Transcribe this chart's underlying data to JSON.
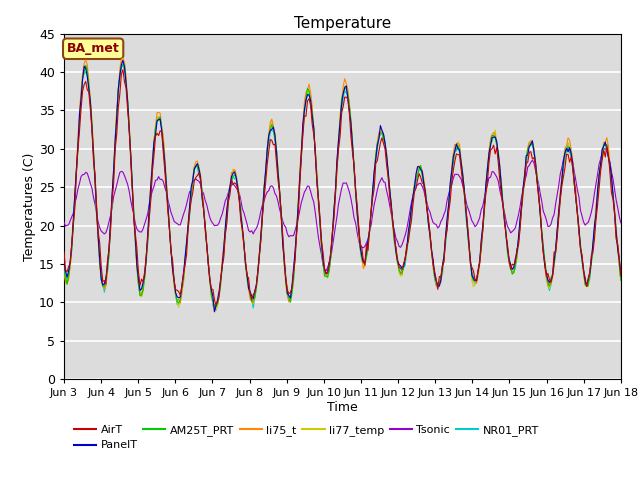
{
  "title": "Temperature",
  "xlabel": "Time",
  "ylabel": "Temperatures (C)",
  "ylim": [
    0,
    45
  ],
  "yticks": [
    0,
    5,
    10,
    15,
    20,
    25,
    30,
    35,
    40,
    45
  ],
  "plot_bg_color": "#dcdcdc",
  "grid_color": "white",
  "annotation_text": "BA_met",
  "annotation_bg": "#ffff99",
  "annotation_border": "#8b4513",
  "series_colors": {
    "AirT": "#cc0000",
    "PanelT": "#0000cc",
    "AM25T_PRT": "#00cc00",
    "li75_t": "#ff8800",
    "li77_temp": "#cccc00",
    "Tsonic": "#9900cc",
    "NR01_PRT": "#00cccc"
  },
  "x_tick_labels": [
    "Jun 3",
    "Jun 4",
    "Jun 5",
    "Jun 6",
    "Jun 7",
    "Jun 8",
    "Jun 9",
    "Jun 10",
    "Jun 11",
    "Jun 12",
    "Jun 13",
    "Jun 14",
    "Jun 15",
    "Jun 16",
    "Jun 17",
    "Jun 18"
  ],
  "x_tick_positions": [
    3,
    4,
    5,
    6,
    7,
    8,
    9,
    10,
    11,
    12,
    13,
    14,
    15,
    16,
    17,
    18
  ],
  "x_start": 3,
  "x_end": 18
}
